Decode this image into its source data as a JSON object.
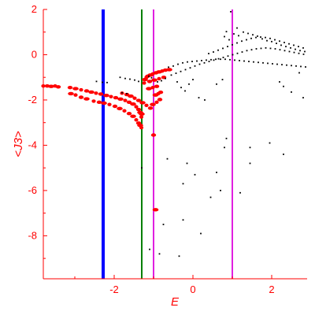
{
  "chart_data": {
    "type": "scatter",
    "xlabel": "E",
    "ylabel": "<J3>",
    "xlim": [
      -3.8,
      2.9
    ],
    "ylim": [
      -9.9,
      2.0
    ],
    "xticks": [
      -2,
      0,
      2
    ],
    "xtick_labels": [
      "-2",
      "0",
      "2"
    ],
    "yticks": [
      2,
      0,
      -2,
      -4,
      -6,
      -8
    ],
    "ytick_labels": [
      "2",
      "0",
      "-2",
      "-4",
      "-6",
      "-8"
    ],
    "grid": false,
    "axis_color": "#ff0000",
    "vertical_lines": [
      {
        "x": -2.28,
        "color": "#0000ff"
      },
      {
        "x": -1.3,
        "color": "#008000"
      },
      {
        "x": -1.0,
        "color": "#e020e0"
      },
      {
        "x": 1.0,
        "color": "#e020e0"
      }
    ],
    "series": [
      {
        "color": "#ff0000",
        "marker_size": "large",
        "points": [
          [
            -3.8,
            -1.38
          ],
          [
            -3.7,
            -1.38
          ],
          [
            -3.6,
            -1.4
          ],
          [
            -3.5,
            -1.38
          ],
          [
            -3.42,
            -1.42
          ],
          [
            -3.1,
            -1.72
          ],
          [
            -2.98,
            -1.78
          ],
          [
            -2.84,
            -1.88
          ],
          [
            -2.7,
            -1.95
          ],
          [
            -2.52,
            -2.05
          ],
          [
            -2.38,
            -2.1
          ],
          [
            -2.26,
            -2.14
          ],
          [
            -2.12,
            -2.2
          ],
          [
            -1.98,
            -2.28
          ],
          [
            -1.86,
            -2.38
          ],
          [
            -1.74,
            -2.48
          ],
          [
            -1.62,
            -2.6
          ],
          [
            -1.52,
            -2.72
          ],
          [
            -1.44,
            -2.88
          ],
          [
            -1.38,
            -3.02
          ],
          [
            -1.34,
            -3.12
          ],
          [
            -1.31,
            -3.22
          ],
          [
            -3.12,
            -1.45
          ],
          [
            -2.98,
            -1.5
          ],
          [
            -2.84,
            -1.55
          ],
          [
            -2.7,
            -1.6
          ],
          [
            -2.58,
            -1.65
          ],
          [
            -2.46,
            -1.7
          ],
          [
            -2.34,
            -1.74
          ],
          [
            -2.2,
            -1.8
          ],
          [
            -2.08,
            -1.85
          ],
          [
            -1.96,
            -1.9
          ],
          [
            -1.84,
            -1.96
          ],
          [
            -1.72,
            -2.02
          ],
          [
            -1.62,
            -2.1
          ],
          [
            -1.52,
            -2.18
          ],
          [
            -1.44,
            -2.3
          ],
          [
            -1.38,
            -2.42
          ],
          [
            -1.34,
            -2.55
          ],
          [
            -1.8,
            -1.7
          ],
          [
            -1.68,
            -1.76
          ],
          [
            -1.58,
            -1.83
          ],
          [
            -1.48,
            -1.92
          ],
          [
            -1.38,
            -2.02
          ],
          [
            -1.28,
            -2.12
          ],
          [
            -1.18,
            -2.24
          ],
          [
            -1.08,
            -2.36
          ],
          [
            -1.22,
            -1.1
          ],
          [
            -1.18,
            -1.0
          ],
          [
            -1.15,
            -0.95
          ],
          [
            -1.08,
            -0.9
          ],
          [
            -1.02,
            -0.85
          ],
          [
            -0.94,
            -0.8
          ],
          [
            -0.86,
            -0.76
          ],
          [
            -0.78,
            -0.72
          ],
          [
            -0.7,
            -0.68
          ],
          [
            -0.6,
            -0.66
          ],
          [
            -1.24,
            -1.25
          ],
          [
            -1.1,
            -1.18
          ],
          [
            -0.98,
            -1.12
          ],
          [
            -0.86,
            -1.06
          ],
          [
            -0.74,
            -1.0
          ],
          [
            -1.12,
            -1.5
          ],
          [
            -1.02,
            -1.45
          ],
          [
            -0.92,
            -1.4
          ],
          [
            -0.95,
            -1.78
          ],
          [
            -0.88,
            -1.72
          ],
          [
            -0.82,
            -1.66
          ],
          [
            -1.02,
            -2.2
          ],
          [
            -0.92,
            -2.1
          ],
          [
            -0.84,
            -1.98
          ],
          [
            -1.3,
            -2.62
          ],
          [
            -1.31,
            -2.75
          ],
          [
            -1.0,
            -3.55
          ],
          [
            -0.95,
            -6.85
          ]
        ]
      },
      {
        "color": "#000000",
        "marker_size": "small",
        "points": [
          [
            -2.45,
            -1.18
          ],
          [
            -2.3,
            -1.22
          ],
          [
            -2.18,
            -1.23
          ],
          [
            -1.85,
            -1.0
          ],
          [
            -1.72,
            -1.05
          ],
          [
            -1.6,
            -1.08
          ],
          [
            -1.48,
            -1.12
          ],
          [
            -1.38,
            -1.18
          ],
          [
            -1.8,
            -1.68
          ],
          [
            -1.68,
            -1.72
          ],
          [
            -0.62,
            -0.55
          ],
          [
            -0.5,
            -0.5
          ],
          [
            -0.38,
            -0.42
          ],
          [
            -0.26,
            -0.36
          ],
          [
            -0.14,
            -0.32
          ],
          [
            -0.02,
            -0.3
          ],
          [
            0.1,
            -0.28
          ],
          [
            0.22,
            -0.26
          ],
          [
            0.34,
            -0.24
          ],
          [
            0.46,
            -0.22
          ],
          [
            0.58,
            -0.2
          ],
          [
            0.7,
            -0.2
          ],
          [
            0.82,
            -0.2
          ],
          [
            0.94,
            -0.22
          ],
          [
            1.06,
            -0.24
          ],
          [
            1.18,
            -0.26
          ],
          [
            1.3,
            -0.28
          ],
          [
            1.42,
            -0.3
          ],
          [
            1.54,
            -0.32
          ],
          [
            1.66,
            -0.34
          ],
          [
            1.78,
            -0.36
          ],
          [
            1.9,
            -0.38
          ],
          [
            2.02,
            -0.4
          ],
          [
            2.14,
            -0.42
          ],
          [
            2.26,
            -0.44
          ],
          [
            2.38,
            -0.46
          ],
          [
            2.5,
            -0.48
          ],
          [
            2.62,
            -0.5
          ],
          [
            2.74,
            -0.52
          ],
          [
            2.86,
            -0.54
          ],
          [
            -0.55,
            -0.9
          ],
          [
            -0.43,
            -0.82
          ],
          [
            -0.31,
            -0.74
          ],
          [
            -0.19,
            -0.66
          ],
          [
            -0.07,
            -0.58
          ],
          [
            0.05,
            -0.5
          ],
          [
            0.17,
            -0.42
          ],
          [
            0.29,
            -0.36
          ],
          [
            0.41,
            -0.3
          ],
          [
            0.53,
            -0.24
          ],
          [
            0.65,
            -0.18
          ],
          [
            0.77,
            -0.12
          ],
          [
            0.89,
            -0.06
          ],
          [
            1.01,
            0.0
          ],
          [
            1.13,
            0.06
          ],
          [
            1.25,
            0.12
          ],
          [
            1.37,
            0.18
          ],
          [
            1.49,
            0.22
          ],
          [
            1.61,
            0.26
          ],
          [
            1.73,
            0.28
          ],
          [
            1.85,
            0.3
          ],
          [
            1.97,
            0.28
          ],
          [
            2.09,
            0.26
          ],
          [
            2.21,
            0.22
          ],
          [
            2.33,
            0.18
          ],
          [
            2.45,
            0.14
          ],
          [
            2.57,
            0.1
          ],
          [
            2.69,
            0.06
          ],
          [
            2.81,
            0.02
          ],
          [
            0.4,
            0.05
          ],
          [
            0.52,
            0.12
          ],
          [
            0.64,
            0.2
          ],
          [
            0.76,
            0.28
          ],
          [
            0.88,
            0.36
          ],
          [
            1.0,
            0.44
          ],
          [
            1.12,
            0.52
          ],
          [
            1.24,
            0.6
          ],
          [
            1.36,
            0.66
          ],
          [
            1.48,
            0.72
          ],
          [
            1.6,
            0.76
          ],
          [
            1.72,
            0.78
          ],
          [
            1.84,
            0.76
          ],
          [
            1.96,
            0.72
          ],
          [
            2.08,
            0.66
          ],
          [
            2.2,
            0.6
          ],
          [
            2.32,
            0.54
          ],
          [
            2.44,
            0.48
          ],
          [
            2.56,
            0.42
          ],
          [
            2.68,
            0.36
          ],
          [
            2.8,
            0.3
          ],
          [
            0.8,
            0.8
          ],
          [
            0.92,
            0.66
          ],
          [
            1.04,
            0.92
          ],
          [
            1.16,
            0.84
          ],
          [
            1.28,
            1.0
          ],
          [
            1.4,
            0.94
          ],
          [
            1.52,
            0.88
          ],
          [
            1.64,
            0.82
          ],
          [
            1.76,
            0.7
          ],
          [
            1.88,
            0.62
          ],
          [
            2.0,
            0.58
          ],
          [
            2.12,
            0.5
          ],
          [
            2.24,
            0.42
          ],
          [
            2.36,
            0.36
          ],
          [
            2.48,
            0.3
          ],
          [
            2.6,
            0.24
          ],
          [
            2.72,
            0.18
          ],
          [
            2.84,
            0.14
          ],
          [
            0.85,
            1.02
          ],
          [
            1.12,
            1.18
          ],
          [
            0.96,
            1.9
          ],
          [
            -0.4,
            -1.2
          ],
          [
            -0.3,
            -1.45
          ],
          [
            -0.2,
            -1.6
          ],
          [
            -0.1,
            -1.3
          ],
          [
            0.0,
            -1.1
          ],
          [
            0.15,
            -1.9
          ],
          [
            0.3,
            -2.0
          ],
          [
            0.6,
            -1.3
          ],
          [
            0.75,
            -1.1
          ],
          [
            -0.9,
            -1.2
          ],
          [
            -0.8,
            -1.15
          ],
          [
            -0.7,
            -1.05
          ],
          [
            -1.12,
            -0.95
          ],
          [
            -1.05,
            -1.02
          ],
          [
            2.3,
            -1.4
          ],
          [
            2.5,
            -1.65
          ],
          [
            2.2,
            -1.2
          ],
          [
            2.7,
            -0.8
          ],
          [
            2.8,
            -1.9
          ],
          [
            -0.65,
            -4.6
          ],
          [
            -0.15,
            -4.8
          ],
          [
            0.05,
            -5.3
          ],
          [
            0.6,
            -5.2
          ],
          [
            0.8,
            -4.1
          ],
          [
            0.85,
            -3.7
          ],
          [
            1.45,
            -4.1
          ],
          [
            1.95,
            -3.9
          ],
          [
            1.45,
            -4.8
          ],
          [
            2.3,
            -4.4
          ],
          [
            -1.3,
            -5.0
          ],
          [
            -0.25,
            -5.7
          ],
          [
            0.45,
            -6.3
          ],
          [
            0.7,
            -6.0
          ],
          [
            1.2,
            -6.1
          ],
          [
            -0.75,
            -7.5
          ],
          [
            -0.25,
            -7.3
          ],
          [
            0.2,
            -7.9
          ],
          [
            -1.1,
            -8.6
          ],
          [
            -0.85,
            -8.8
          ],
          [
            -0.35,
            -8.9
          ]
        ]
      }
    ]
  }
}
